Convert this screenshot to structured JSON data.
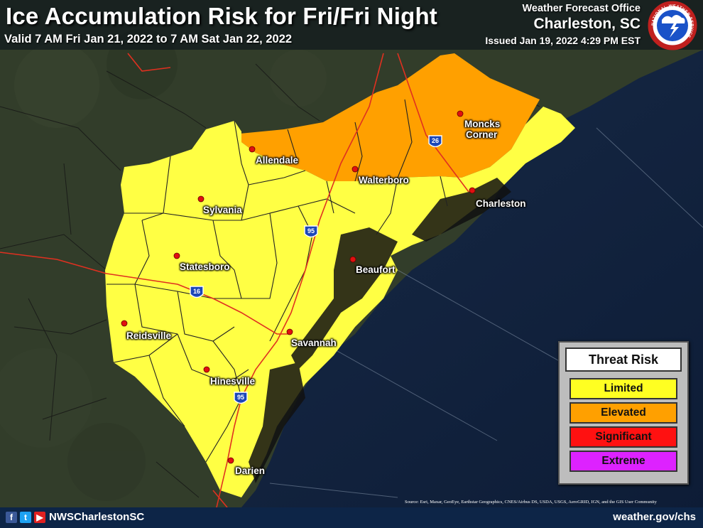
{
  "header": {
    "title": "Ice Accumulation Risk for Fri/Fri Night",
    "valid": "Valid 7 AM Fri Jan 21, 2022 to 7 AM Sat Jan 22, 2022",
    "office_line1": "Weather Forecast Office",
    "office_line2": "Charleston, SC",
    "issued": "Issued Jan 19, 2022 4:29 PM EST",
    "logo_text": "NATIONAL WEATHER SERVICE"
  },
  "map": {
    "colors": {
      "land": "#2e3a27",
      "ocean": "#10213d",
      "limited": "#ffff44",
      "elevated": "#ffa000",
      "county_line": "#222222",
      "highway": "#e03020",
      "city_dot": "#e01010"
    },
    "cities": [
      {
        "name": "Moncks",
        "name2": "Corner"
      },
      {
        "name": "Allendale"
      },
      {
        "name": "Walterboro"
      },
      {
        "name": "Charleston"
      },
      {
        "name": "Sylvania"
      },
      {
        "name": "Beaufort"
      },
      {
        "name": "Statesboro"
      },
      {
        "name": "Reidsville"
      },
      {
        "name": "Savannah"
      },
      {
        "name": "Hinesville"
      },
      {
        "name": "Darien"
      }
    ],
    "shields": [
      "26",
      "95",
      "16",
      "95"
    ]
  },
  "legend": {
    "title": "Threat Risk",
    "items": [
      {
        "label": "Limited",
        "color": "#ffff22"
      },
      {
        "label": "Elevated",
        "color": "#ffa000"
      },
      {
        "label": "Significant",
        "color": "#ff1111"
      },
      {
        "label": "Extreme",
        "color": "#dd22ff"
      }
    ]
  },
  "source": "Source: Esri, Maxar, GeoEye, Earthstar Geographics, CNES/Airbus DS, USDA, USGS, AeroGRID, IGN, and the GIS User Community",
  "footer": {
    "handle": "NWSCharlestonSC",
    "website": "weather.gov/chs",
    "social_icons": [
      "facebook-icon",
      "twitter-icon",
      "youtube-icon"
    ]
  }
}
